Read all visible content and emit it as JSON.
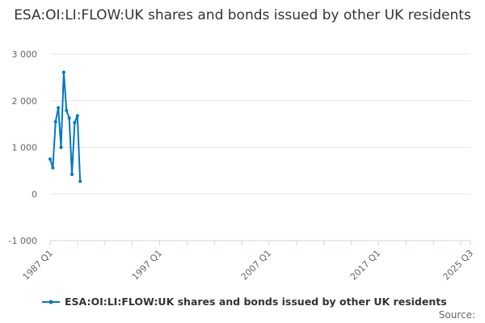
{
  "chart_data": {
    "type": "line",
    "title": "ESA:OI:LI:FLOW:UK shares and bonds issued by other UK residents",
    "xlabel": "",
    "ylabel": "",
    "ylim": [
      -1000,
      3000
    ],
    "yticks": [
      "3 000",
      "2 000",
      "1 000",
      "0",
      "-1 000"
    ],
    "ytick_values": [
      3000,
      2000,
      1000,
      0,
      -1000
    ],
    "xticks": [
      "1987 Q1",
      "1997 Q1",
      "2007 Q1",
      "2017 Q1",
      "2025 Q3"
    ],
    "x_range": [
      "1987 Q1",
      "2025 Q3"
    ],
    "grid": true,
    "legend": "bottom",
    "series": [
      {
        "name": "ESA:OI:LI:FLOW:UK shares and bonds issued by other UK residents",
        "color": "#0077c0",
        "x": [
          "1987 Q1",
          "1987 Q2",
          "1987 Q3",
          "1987 Q4",
          "1988 Q1",
          "1988 Q2",
          "1988 Q3",
          "1988 Q4",
          "1989 Q1",
          "1989 Q2",
          "1989 Q3",
          "1989 Q4"
        ],
        "values": [
          750,
          560,
          1550,
          1850,
          1000,
          2610,
          1790,
          1630,
          420,
          1530,
          1680,
          270
        ]
      }
    ]
  },
  "source_label": "Source:"
}
